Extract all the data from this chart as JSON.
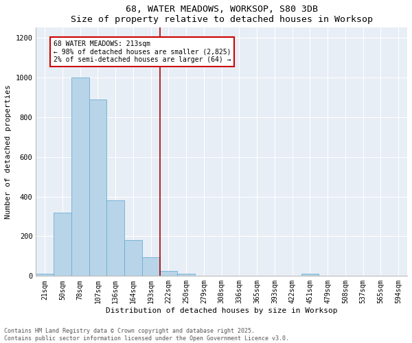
{
  "title1": "68, WATER MEADOWS, WORKSOP, S80 3DB",
  "title2": "Size of property relative to detached houses in Worksop",
  "xlabel": "Distribution of detached houses by size in Worksop",
  "ylabel": "Number of detached properties",
  "categories": [
    "21sqm",
    "50sqm",
    "78sqm",
    "107sqm",
    "136sqm",
    "164sqm",
    "193sqm",
    "222sqm",
    "250sqm",
    "279sqm",
    "308sqm",
    "336sqm",
    "365sqm",
    "393sqm",
    "422sqm",
    "451sqm",
    "479sqm",
    "508sqm",
    "537sqm",
    "565sqm",
    "594sqm"
  ],
  "values": [
    10,
    320,
    1000,
    890,
    380,
    180,
    95,
    25,
    10,
    0,
    0,
    0,
    0,
    0,
    0,
    10,
    0,
    0,
    0,
    0,
    0
  ],
  "bar_color": "#b8d4e8",
  "bar_edge_color": "#6aaed6",
  "vline_x_idx": 6.5,
  "vline_color": "#aa0000",
  "annotation_text": "68 WATER MEADOWS: 213sqm\n← 98% of detached houses are smaller (2,825)\n2% of semi-detached houses are larger (64) →",
  "annotation_box_facecolor": "#ffffff",
  "annotation_box_edgecolor": "#cc0000",
  "ylim": [
    0,
    1250
  ],
  "yticks": [
    0,
    200,
    400,
    600,
    800,
    1000,
    1200
  ],
  "plot_bg_color": "#e8eef5",
  "fig_bg_color": "#ffffff",
  "footer_text": "Contains HM Land Registry data © Crown copyright and database right 2025.\nContains public sector information licensed under the Open Government Licence v3.0.",
  "title_fontsize": 9.5,
  "axis_label_fontsize": 8,
  "tick_fontsize": 7,
  "annotation_fontsize": 7,
  "footer_fontsize": 6
}
